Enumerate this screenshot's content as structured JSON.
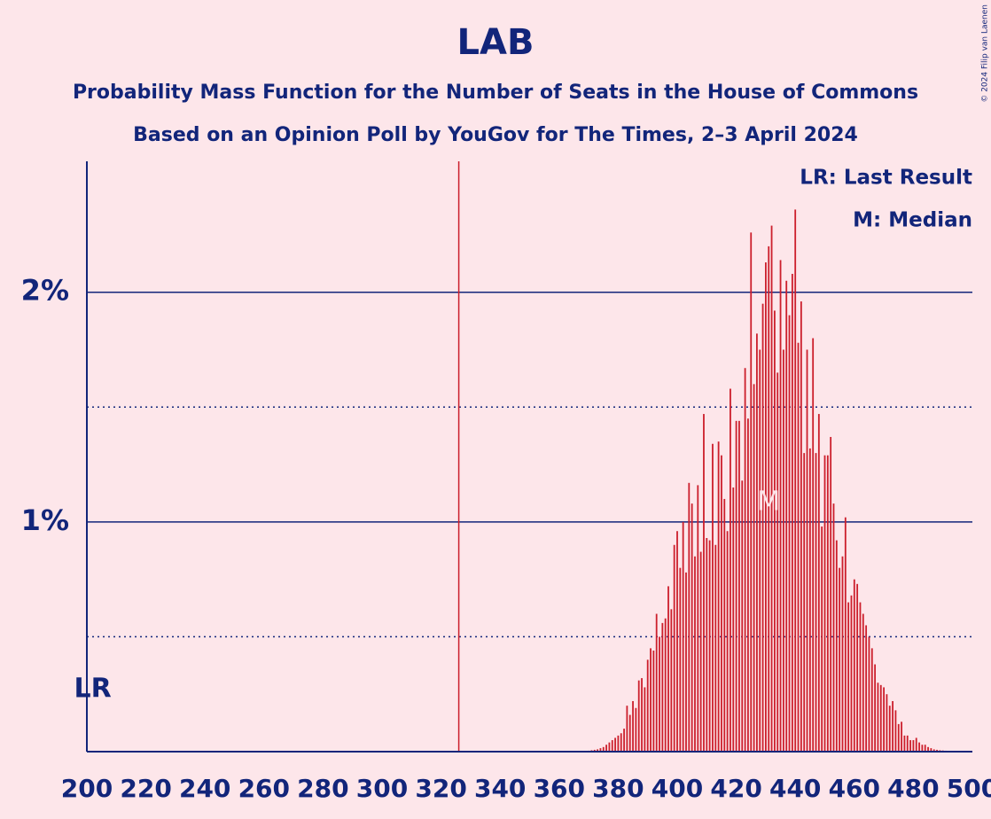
{
  "chart_data": {
    "type": "bar",
    "title": "LAB",
    "subtitle": [
      "Probability Mass Function for the Number of Seats in the House of Commons",
      "Based on an Opinion Poll by YouGov for The Times, 2–3 April 2024"
    ],
    "copyright": "© 2024 Filip van Laenen",
    "legend": [
      "LR: Last Result",
      "M: Median"
    ],
    "last_result": {
      "x": 202,
      "label": "LR"
    },
    "median": {
      "x": 431,
      "label": "M"
    },
    "majority": 326,
    "color": "#cc1f2c",
    "x": [
      365,
      366,
      367,
      368,
      369,
      370,
      371,
      372,
      373,
      374,
      375,
      376,
      377,
      378,
      379,
      380,
      381,
      382,
      383,
      384,
      385,
      386,
      387,
      388,
      389,
      390,
      391,
      392,
      393,
      394,
      395,
      396,
      397,
      398,
      399,
      400,
      401,
      402,
      403,
      404,
      405,
      406,
      407,
      408,
      409,
      410,
      411,
      412,
      413,
      414,
      415,
      416,
      417,
      418,
      419,
      420,
      421,
      422,
      423,
      424,
      425,
      426,
      427,
      428,
      429,
      430,
      431,
      432,
      433,
      434,
      435,
      436,
      437,
      438,
      439,
      440,
      441,
      442,
      443,
      444,
      445,
      446,
      447,
      448,
      449,
      450,
      451,
      452,
      453,
      454,
      455,
      456,
      457,
      458,
      459,
      460,
      461,
      462,
      463,
      464,
      465,
      466,
      467,
      468,
      469,
      470,
      471,
      472,
      473,
      474,
      475,
      476,
      477,
      478,
      479,
      480,
      481,
      482,
      483,
      484,
      485,
      486,
      487,
      488,
      489,
      490,
      491,
      492,
      493,
      494,
      495
    ],
    "values": [
      0.001,
      0.001,
      0.002,
      0.002,
      0.003,
      0.004,
      0.006,
      0.008,
      0.01,
      0.015,
      0.02,
      0.03,
      0.04,
      0.05,
      0.06,
      0.07,
      0.08,
      0.1,
      0.2,
      0.16,
      0.22,
      0.19,
      0.31,
      0.32,
      0.28,
      0.4,
      0.45,
      0.44,
      0.6,
      0.5,
      0.56,
      0.58,
      0.72,
      0.62,
      0.9,
      0.96,
      0.8,
      1.0,
      0.78,
      1.17,
      1.08,
      0.85,
      1.16,
      0.87,
      1.47,
      0.93,
      0.92,
      1.34,
      0.9,
      1.35,
      1.29,
      1.1,
      0.96,
      1.58,
      1.15,
      1.44,
      1.44,
      1.18,
      1.67,
      1.45,
      2.26,
      1.6,
      1.82,
      1.75,
      1.95,
      2.13,
      2.2,
      2.29,
      1.92,
      1.65,
      2.14,
      1.75,
      2.05,
      1.9,
      2.08,
      2.36,
      1.78,
      1.96,
      1.3,
      1.75,
      1.32,
      1.8,
      1.3,
      1.47,
      0.98,
      1.29,
      1.29,
      1.37,
      1.08,
      0.92,
      0.8,
      0.85,
      1.02,
      0.65,
      0.68,
      0.75,
      0.73,
      0.65,
      0.6,
      0.55,
      0.5,
      0.45,
      0.38,
      0.3,
      0.29,
      0.28,
      0.25,
      0.2,
      0.22,
      0.18,
      0.12,
      0.13,
      0.07,
      0.07,
      0.05,
      0.05,
      0.06,
      0.04,
      0.03,
      0.03,
      0.02,
      0.015,
      0.01,
      0.008,
      0.006,
      0.005,
      0.004,
      0.003,
      0.002,
      0.002,
      0.001
    ],
    "xlim": [
      200,
      500
    ],
    "xticks": [
      200,
      220,
      240,
      260,
      280,
      300,
      320,
      340,
      360,
      380,
      400,
      420,
      440,
      460,
      480,
      500
    ],
    "ylim": [
      0,
      2.57
    ],
    "yticks": [
      {
        "value": 1,
        "label": "1%"
      },
      {
        "value": 2,
        "label": "2%"
      }
    ],
    "minor_yticks": [
      0.5,
      1.5
    ],
    "grid": true
  }
}
